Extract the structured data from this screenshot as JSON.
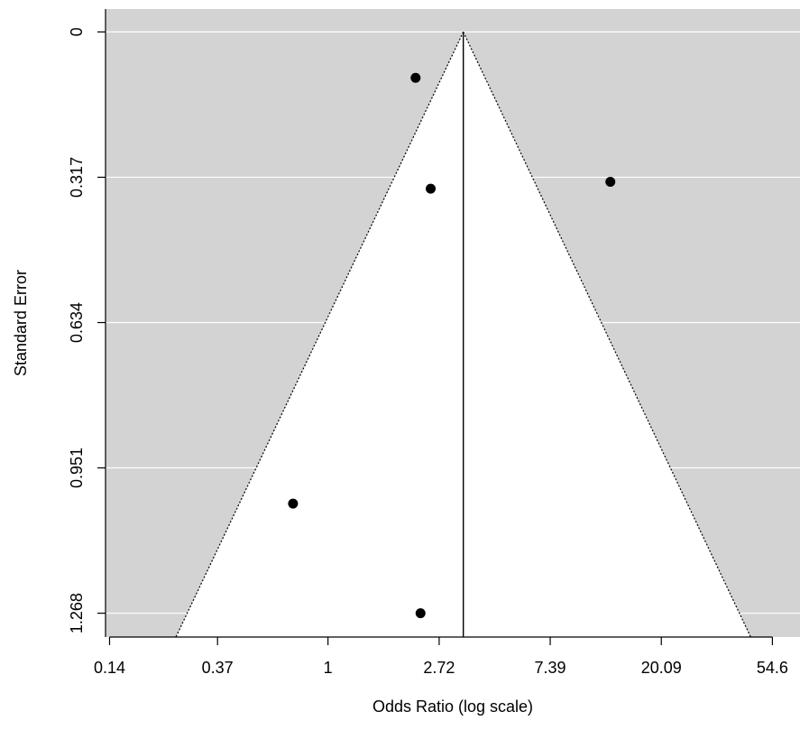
{
  "chart_data": {
    "type": "scatter",
    "subtype": "funnel plot",
    "title": "",
    "xlabel": "Odds Ratio (log scale)",
    "ylabel": "Standard Error",
    "x_scale": "log",
    "x_ticks": [
      {
        "value": 0.14,
        "label": "0.14"
      },
      {
        "value": 0.37,
        "label": "0.37"
      },
      {
        "value": 1,
        "label": "1"
      },
      {
        "value": 2.72,
        "label": "2.72"
      },
      {
        "value": 7.39,
        "label": "7.39"
      },
      {
        "value": 20.09,
        "label": "20.09"
      },
      {
        "value": 54.6,
        "label": "54.6"
      }
    ],
    "y_ticks": [
      {
        "value": 0,
        "label": "0"
      },
      {
        "value": 0.317,
        "label": "0.317"
      },
      {
        "value": 0.634,
        "label": "0.634"
      },
      {
        "value": 0.951,
        "label": "0.951"
      },
      {
        "value": 1.268,
        "label": "1.268"
      }
    ],
    "xlim": [
      0.135,
      70
    ],
    "ylim": [
      1.32,
      -0.05
    ],
    "y_reversed": true,
    "pooled_estimate": 3.38,
    "funnel_z": 1.96,
    "grid": true,
    "colors": {
      "outside_region": "#d3d3d3",
      "inside_region": "#ffffff",
      "gridlines": "#ffffff",
      "points": "#000000",
      "funnel_lines": "#000000"
    },
    "points": [
      {
        "x": 2.2,
        "y": 0.1
      },
      {
        "x": 2.52,
        "y": 0.342
      },
      {
        "x": 12.7,
        "y": 0.327
      },
      {
        "x": 0.73,
        "y": 1.029
      },
      {
        "x": 2.3,
        "y": 1.268
      }
    ]
  }
}
